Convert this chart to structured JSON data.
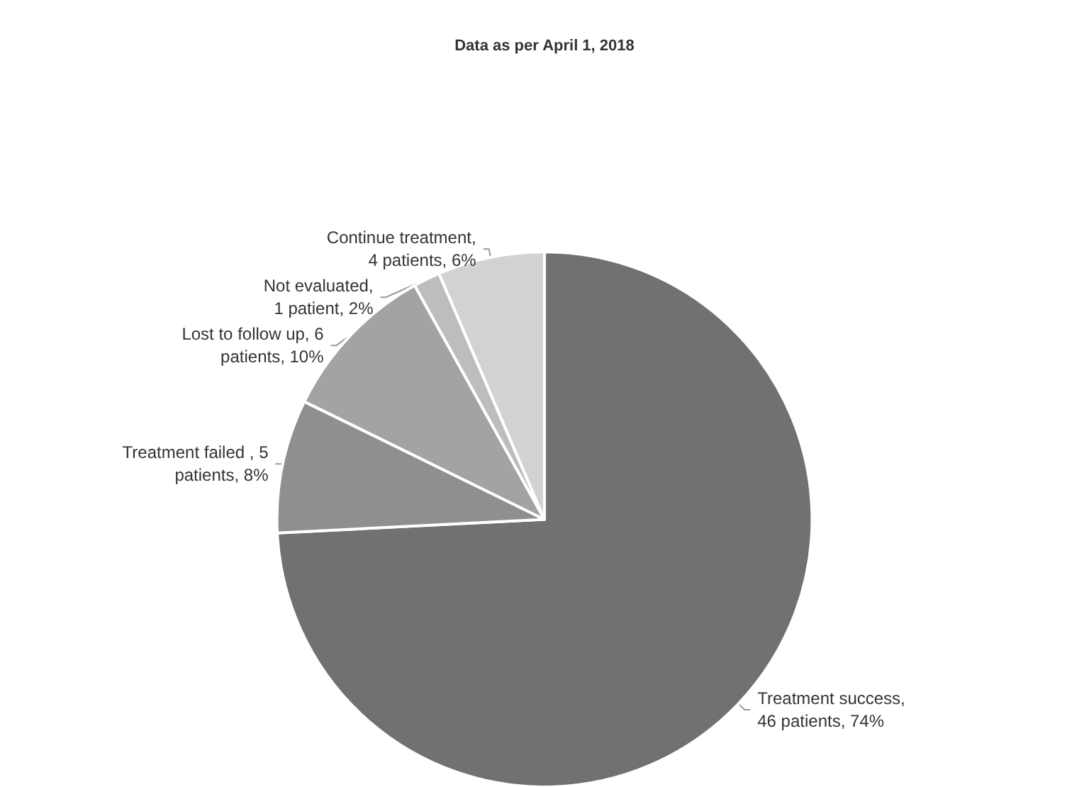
{
  "chart_data": {
    "type": "pie",
    "title": "Data as per April 1, 2018",
    "categories": [
      "Treatment success,\n46 patients, 74%",
      "Treatment failed , 5\npatients, 8%",
      "Lost to follow up, 6\npatients, 10%",
      "Not evaluated,\n1 patient, 2%",
      "Continue treatment,\n4 patients, 6%"
    ],
    "values": [
      46,
      5,
      6,
      1,
      4
    ],
    "colors": [
      "#727070",
      "#8f8f8f",
      "#a3a3a3",
      "#bdbdbd",
      "#d2d2d2"
    ],
    "legend": false
  }
}
